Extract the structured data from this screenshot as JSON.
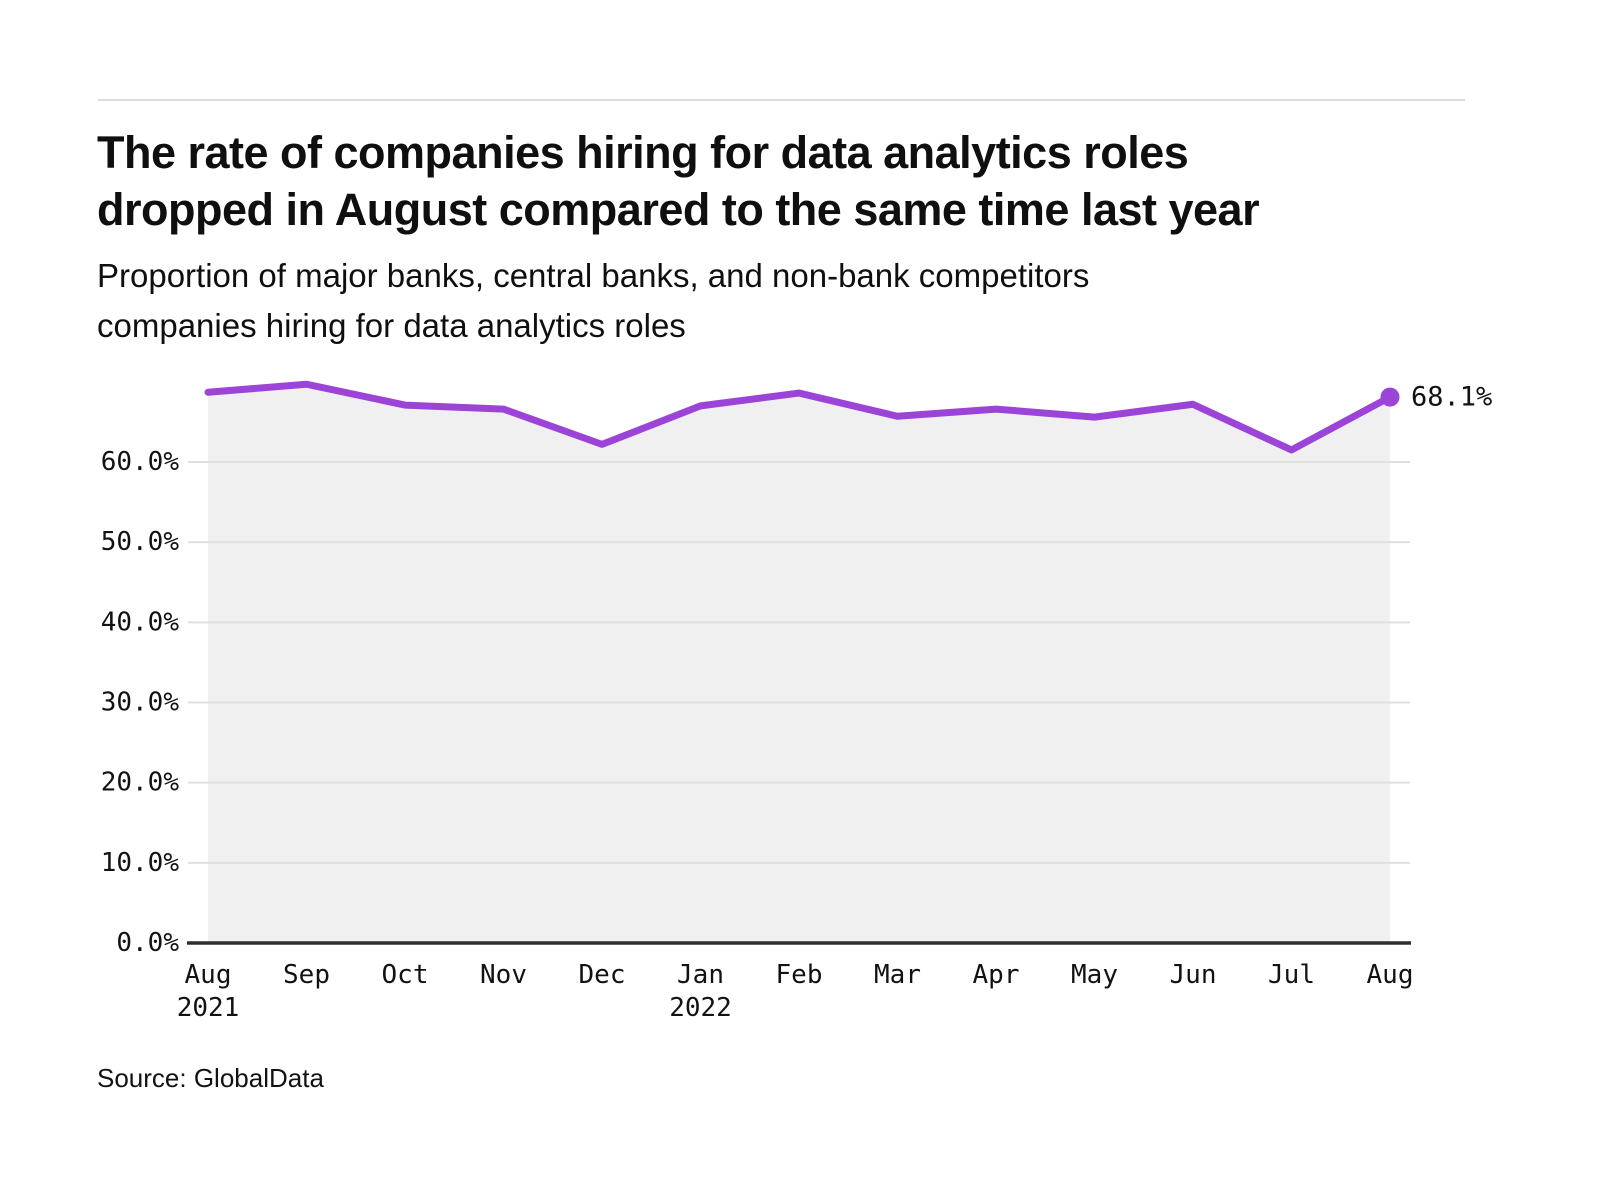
{
  "page": {
    "source": "Source: GlobalData"
  },
  "chart_data": {
    "type": "area",
    "title": "The rate of companies hiring for data analytics roles dropped in August compared to the same time last year",
    "title_lines": [
      "The rate of companies hiring for data analytics roles",
      "dropped in August compared to the same time last year"
    ],
    "subtitle": "Proportion of major banks, central banks, and non-bank competitors companies hiring for data analytics roles",
    "subtitle_lines": [
      "Proportion of major banks, central banks, and non-bank competitors",
      "companies hiring for data analytics roles"
    ],
    "source": "Source: GlobalData",
    "categories": [
      "Aug",
      "Sep",
      "Oct",
      "Nov",
      "Dec",
      "Jan",
      "Feb",
      "Mar",
      "Apr",
      "May",
      "Jun",
      "Jul",
      "Aug"
    ],
    "year_markers": [
      {
        "index": 0,
        "label": "2021"
      },
      {
        "index": 5,
        "label": "2022"
      }
    ],
    "values": [
      68.7,
      69.7,
      67.1,
      66.6,
      62.2,
      67.0,
      68.6,
      65.7,
      66.6,
      65.6,
      67.2,
      61.5,
      68.1
    ],
    "end_label": "68.1%",
    "yticks": [
      0,
      10,
      20,
      30,
      40,
      50,
      60
    ],
    "ytick_labels": [
      "0.0%",
      "10.0%",
      "20.0%",
      "30.0%",
      "40.0%",
      "50.0%",
      "60.0%"
    ],
    "ylim": [
      0,
      72
    ],
    "grid": true,
    "legend": "none",
    "colors": {
      "line": "#9C43D8",
      "area_fill": "#F0F0F0",
      "gridline": "#E0E0E0",
      "axis": "#2E2E2E",
      "text": "#121212"
    }
  }
}
